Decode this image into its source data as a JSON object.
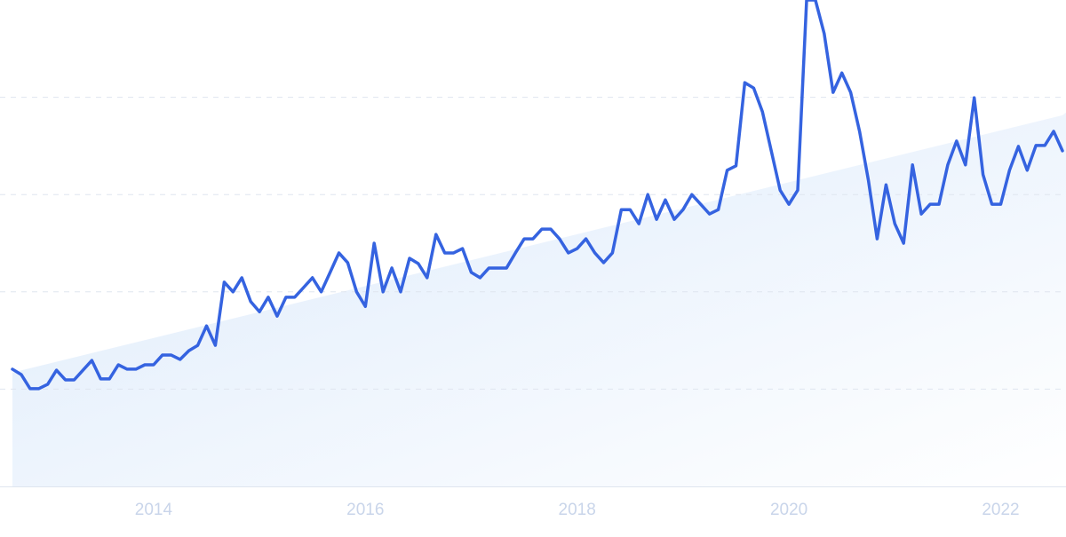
{
  "chart_data": {
    "type": "line",
    "x": [
      2012.667,
      2012.75,
      2012.833,
      2012.917,
      2013,
      2013.083,
      2013.167,
      2013.25,
      2013.333,
      2013.417,
      2013.5,
      2013.583,
      2013.667,
      2013.75,
      2013.833,
      2013.917,
      2014,
      2014.083,
      2014.167,
      2014.25,
      2014.333,
      2014.417,
      2014.5,
      2014.583,
      2014.667,
      2014.75,
      2014.833,
      2014.917,
      2015,
      2015.083,
      2015.167,
      2015.25,
      2015.333,
      2015.417,
      2015.5,
      2015.583,
      2015.667,
      2015.75,
      2015.833,
      2015.917,
      2016,
      2016.083,
      2016.167,
      2016.25,
      2016.333,
      2016.417,
      2016.5,
      2016.583,
      2016.667,
      2016.75,
      2016.833,
      2016.917,
      2017,
      2017.083,
      2017.167,
      2017.25,
      2017.333,
      2017.417,
      2017.5,
      2017.583,
      2017.667,
      2017.75,
      2017.833,
      2017.917,
      2018,
      2018.083,
      2018.167,
      2018.25,
      2018.333,
      2018.417,
      2018.5,
      2018.583,
      2018.667,
      2018.75,
      2018.833,
      2018.917,
      2019,
      2019.083,
      2019.167,
      2019.25,
      2019.333,
      2019.417,
      2019.5,
      2019.583,
      2019.667,
      2019.75,
      2019.833,
      2019.917,
      2020,
      2020.083,
      2020.167,
      2020.25,
      2020.333,
      2020.417,
      2020.5,
      2020.583,
      2020.667,
      2020.75,
      2020.833,
      2020.917,
      2021,
      2021.083,
      2021.167,
      2021.25,
      2021.333,
      2021.417,
      2021.5,
      2021.583,
      2021.667,
      2021.75,
      2021.833,
      2021.917,
      2022,
      2022.083,
      2022.167,
      2022.25,
      2022.333,
      2022.417,
      2022.5,
      2022.583
    ],
    "series": [
      {
        "color": "#3563e0",
        "values": [
          24.1,
          23.0,
          20.1,
          20.1,
          21.0,
          23.9,
          21.9,
          21.9,
          23.9,
          25.9,
          22.1,
          22.1,
          25.0,
          24.1,
          24.1,
          25.0,
          25.0,
          27.0,
          27.0,
          26.1,
          27.9,
          29.0,
          33.0,
          29.0,
          42.0,
          40.0,
          42.9,
          38.0,
          35.9,
          38.9,
          35.0,
          38.9,
          38.9,
          40.9,
          42.9,
          40.0,
          44.0,
          48.0,
          46.0,
          40.0,
          37.0,
          50.0,
          40.0,
          44.9,
          40.0,
          46.9,
          45.8,
          42.9,
          51.8,
          48.0,
          48.0,
          48.9,
          44.0,
          42.9,
          44.9,
          44.9,
          44.9,
          48.0,
          50.9,
          50.9,
          52.9,
          52.9,
          50.9,
          48.0,
          48.9,
          50.9,
          48.0,
          46.0,
          48.0,
          56.9,
          56.9,
          54.0,
          60.0,
          54.9,
          58.9,
          54.9,
          56.9,
          60.0,
          58.0,
          56.0,
          56.9,
          65.0,
          65.9,
          83.0,
          81.9,
          77.0,
          69.0,
          60.9,
          58.0,
          60.9,
          100,
          100,
          93.1,
          81.0,
          85.0,
          81.0,
          73.0,
          63.0,
          50.9,
          62.0,
          54.0,
          50.0,
          66.1,
          56.0,
          58.0,
          58.0,
          66.1,
          71.0,
          66.1,
          79.9,
          64.1,
          58.0,
          58.0,
          65.0,
          69.9,
          65.0,
          70.1,
          70.1,
          73.0,
          69.0
        ]
      }
    ],
    "trend": {
      "x": [
        2012.667,
        2022.583
      ],
      "values": [
        23.4,
        76.3
      ],
      "color": "#e3eefb"
    },
    "xlim": [
      2012.667,
      2022.583
    ],
    "xticks": [
      2014,
      2016,
      2018,
      2020,
      2022
    ],
    "ylim": [
      0,
      100
    ],
    "yticks": [
      20,
      40,
      60,
      80
    ],
    "grid": true
  }
}
